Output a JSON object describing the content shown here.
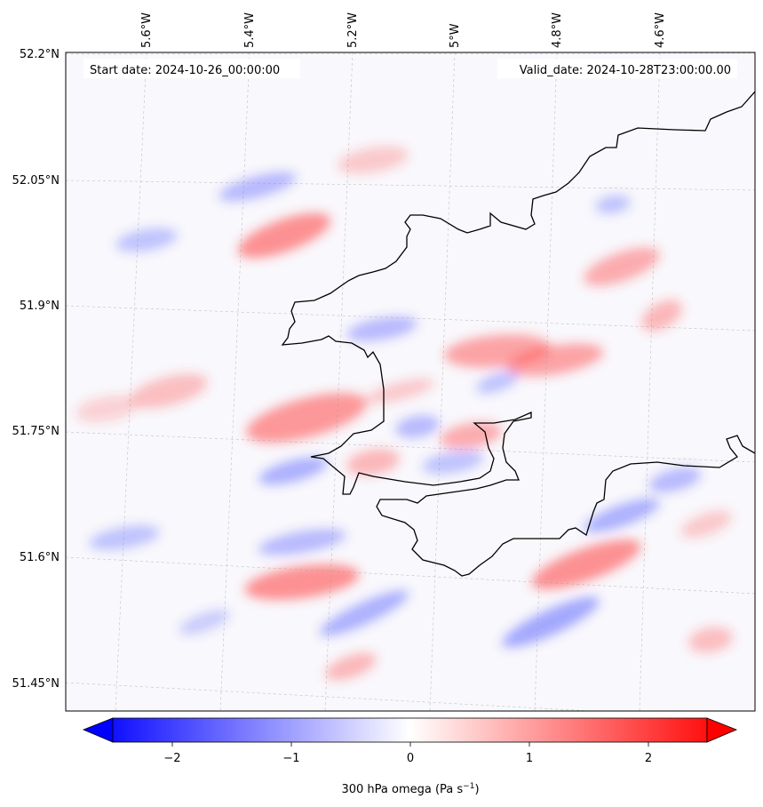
{
  "map": {
    "start_date_text": "Start date: 2024-10-26_00:00:00",
    "valid_date_text": "Valid_date: 2024-10-28T23:00:00.00",
    "lon_labels": [
      "5.6°W",
      "5.4°W",
      "5.2°W",
      "5°W",
      "4.8°W",
      "4.6°W"
    ],
    "lat_labels": [
      "52.2°N",
      "52.05°N",
      "51.9°N",
      "51.75°N",
      "51.6°N",
      "51.45°N"
    ],
    "field": "300 hPa omega",
    "projection_grid": "dashed graticule"
  },
  "colorbar": {
    "label_main": "300 hPa omega (Pa s",
    "label_exp": "−1",
    "label_close": ")",
    "ticks": [
      "−2",
      "−1",
      "0",
      "1",
      "2"
    ],
    "range": [
      -2.6,
      2.6
    ],
    "colors": {
      "negative": "#0000ff",
      "zero": "#ffffff",
      "positive": "#ff0000"
    }
  }
}
